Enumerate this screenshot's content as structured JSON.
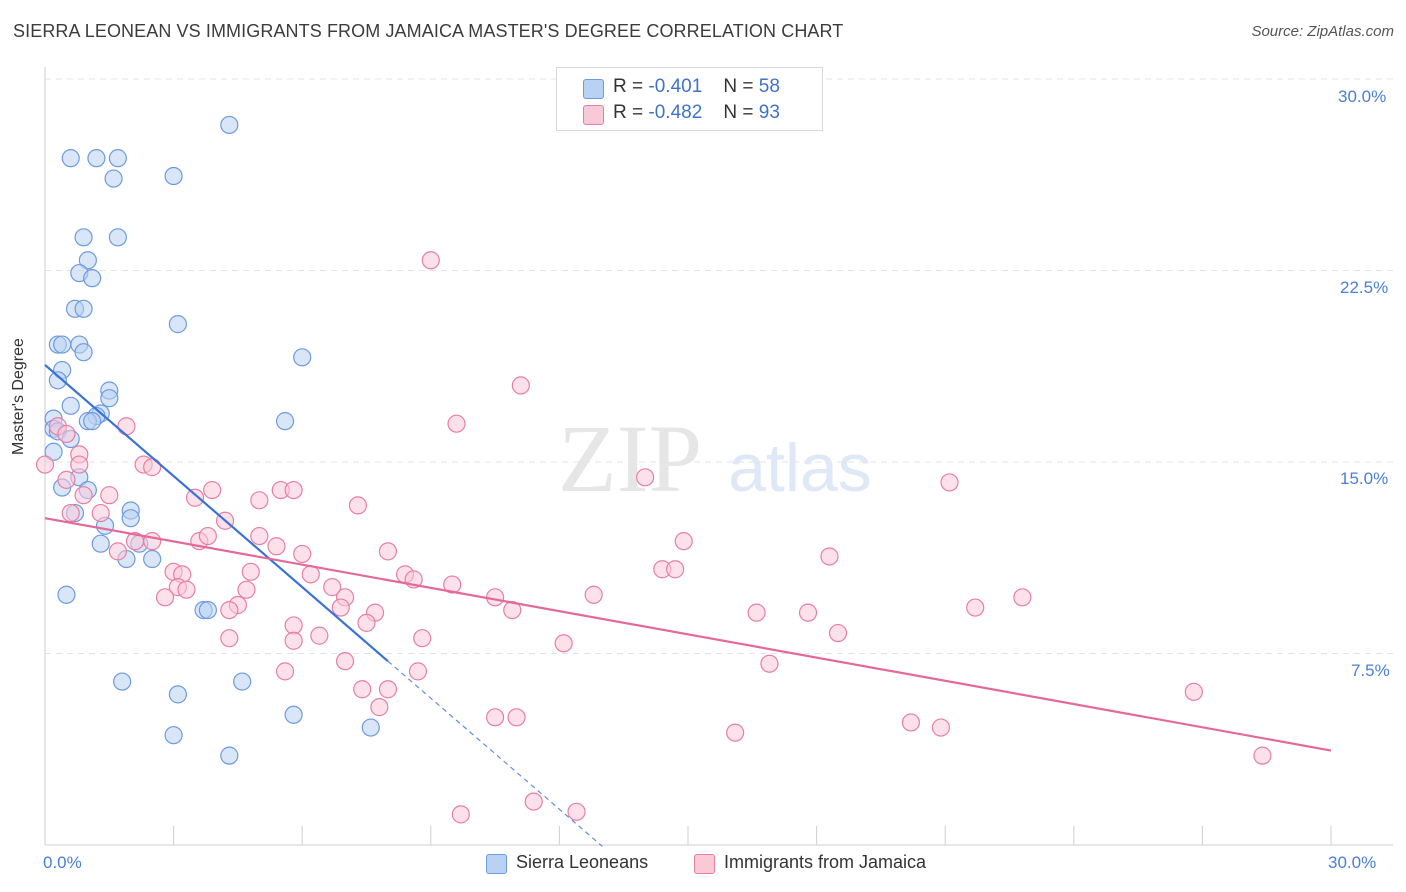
{
  "title": "SIERRA LEONEAN VS IMMIGRANTS FROM JAMAICA MASTER'S DEGREE CORRELATION CHART",
  "source": "Source: ZipAtlas.com",
  "watermark": {
    "zip": "ZIP",
    "atlas": "atlas"
  },
  "legend": {
    "r_label": "R =",
    "n_label": "N =",
    "series": [
      {
        "name": "Sierra Leoneans",
        "r": "-0.401",
        "n": "58",
        "fill": "#b9d2f3",
        "stroke": "#6d9be0"
      },
      {
        "name": "Immigrants from Jamaica",
        "r": "-0.482",
        "n": "93",
        "fill": "#f9c9d8",
        "stroke": "#e87fa2"
      }
    ]
  },
  "colors": {
    "blue_line": "#3a72d4",
    "pink_line": "#e4699a",
    "tick_text": "#4a7fd4",
    "grid": "#e3e3e3"
  },
  "chart_data": {
    "type": "scatter",
    "title": "SIERRA LEONEAN VS IMMIGRANTS FROM JAMAICA MASTER'S DEGREE CORRELATION CHART",
    "xlabel": "",
    "ylabel": "Master's Degree",
    "xlim": [
      0,
      30
    ],
    "ylim": [
      0,
      30
    ],
    "x_tick_labels": [
      "0.0%",
      "30.0%"
    ],
    "y_ticks": [
      7.5,
      15.0,
      22.5,
      30.0
    ],
    "y_tick_labels": [
      "7.5%",
      "15.0%",
      "22.5%",
      "30.0%"
    ],
    "grid": true,
    "legend_position": "top-center",
    "series": [
      {
        "name": "Sierra Leoneans",
        "points": [
          [
            4.3,
            28.2
          ],
          [
            0.6,
            26.9
          ],
          [
            1.2,
            26.9
          ],
          [
            1.7,
            26.9
          ],
          [
            1.6,
            26.1
          ],
          [
            3.0,
            26.2
          ],
          [
            0.9,
            23.8
          ],
          [
            1.7,
            23.8
          ],
          [
            1.0,
            22.9
          ],
          [
            0.8,
            22.4
          ],
          [
            1.1,
            22.2
          ],
          [
            0.7,
            21.0
          ],
          [
            0.9,
            21.0
          ],
          [
            3.1,
            20.4
          ],
          [
            0.3,
            19.6
          ],
          [
            0.4,
            19.6
          ],
          [
            0.8,
            19.6
          ],
          [
            0.9,
            19.3
          ],
          [
            6.0,
            19.1
          ],
          [
            0.4,
            18.6
          ],
          [
            0.3,
            18.2
          ],
          [
            1.5,
            17.8
          ],
          [
            1.5,
            17.5
          ],
          [
            0.6,
            17.2
          ],
          [
            1.3,
            16.9
          ],
          [
            1.2,
            16.8
          ],
          [
            1.0,
            16.6
          ],
          [
            1.1,
            16.6
          ],
          [
            5.6,
            16.6
          ],
          [
            0.2,
            16.7
          ],
          [
            0.2,
            16.3
          ],
          [
            0.3,
            16.2
          ],
          [
            0.6,
            15.9
          ],
          [
            0.2,
            15.4
          ],
          [
            0.8,
            14.4
          ],
          [
            0.4,
            14.0
          ],
          [
            1.0,
            13.9
          ],
          [
            0.7,
            13.0
          ],
          [
            2.0,
            13.1
          ],
          [
            2.0,
            12.8
          ],
          [
            1.4,
            12.5
          ],
          [
            1.3,
            11.8
          ],
          [
            2.2,
            11.8
          ],
          [
            1.9,
            11.2
          ],
          [
            2.5,
            11.2
          ],
          [
            0.5,
            9.8
          ],
          [
            3.7,
            9.2
          ],
          [
            3.8,
            9.2
          ],
          [
            1.8,
            6.4
          ],
          [
            3.1,
            5.9
          ],
          [
            4.6,
            6.4
          ],
          [
            5.8,
            5.1
          ],
          [
            3.0,
            4.3
          ],
          [
            7.6,
            4.6
          ],
          [
            4.3,
            3.5
          ]
        ]
      },
      {
        "name": "Immigrants from Jamaica",
        "points": [
          [
            9.0,
            22.9
          ],
          [
            11.1,
            18.0
          ],
          [
            9.6,
            16.5
          ],
          [
            0.0,
            14.9
          ],
          [
            0.3,
            16.4
          ],
          [
            0.5,
            16.1
          ],
          [
            0.8,
            15.3
          ],
          [
            0.8,
            14.9
          ],
          [
            0.5,
            14.3
          ],
          [
            0.9,
            13.7
          ],
          [
            0.6,
            13.0
          ],
          [
            1.3,
            13.0
          ],
          [
            1.5,
            13.7
          ],
          [
            1.9,
            16.4
          ],
          [
            2.3,
            14.9
          ],
          [
            2.5,
            14.8
          ],
          [
            3.5,
            13.6
          ],
          [
            3.9,
            13.9
          ],
          [
            4.2,
            12.7
          ],
          [
            5.0,
            13.5
          ],
          [
            5.5,
            13.9
          ],
          [
            5.8,
            13.9
          ],
          [
            7.3,
            13.3
          ],
          [
            3.6,
            11.9
          ],
          [
            3.8,
            12.1
          ],
          [
            5.0,
            12.1
          ],
          [
            5.4,
            11.7
          ],
          [
            6.0,
            11.4
          ],
          [
            8.0,
            11.5
          ],
          [
            2.1,
            11.9
          ],
          [
            2.5,
            11.9
          ],
          [
            1.7,
            11.5
          ],
          [
            3.0,
            10.7
          ],
          [
            3.2,
            10.6
          ],
          [
            3.1,
            10.1
          ],
          [
            2.8,
            9.7
          ],
          [
            3.3,
            10.0
          ],
          [
            4.8,
            10.7
          ],
          [
            4.7,
            10.0
          ],
          [
            4.5,
            9.4
          ],
          [
            4.3,
            9.2
          ],
          [
            6.2,
            10.6
          ],
          [
            6.7,
            10.1
          ],
          [
            7.0,
            9.7
          ],
          [
            6.9,
            9.3
          ],
          [
            7.7,
            9.1
          ],
          [
            8.4,
            10.6
          ],
          [
            8.6,
            10.4
          ],
          [
            9.5,
            10.2
          ],
          [
            10.5,
            9.7
          ],
          [
            10.9,
            9.2
          ],
          [
            12.8,
            9.8
          ],
          [
            14.4,
            10.8
          ],
          [
            14.7,
            10.8
          ],
          [
            14.0,
            14.4
          ],
          [
            14.9,
            11.9
          ],
          [
            16.6,
            9.1
          ],
          [
            17.8,
            9.1
          ],
          [
            16.9,
            7.1
          ],
          [
            18.5,
            8.3
          ],
          [
            18.3,
            11.3
          ],
          [
            21.7,
            9.3
          ],
          [
            22.8,
            9.7
          ],
          [
            21.1,
            14.2
          ],
          [
            4.3,
            8.1
          ],
          [
            5.8,
            8.6
          ],
          [
            6.4,
            8.2
          ],
          [
            5.8,
            8.0
          ],
          [
            7.5,
            8.7
          ],
          [
            8.8,
            8.1
          ],
          [
            5.6,
            6.8
          ],
          [
            7.0,
            7.2
          ],
          [
            7.4,
            6.1
          ],
          [
            8.0,
            6.1
          ],
          [
            7.8,
            5.4
          ],
          [
            8.7,
            6.8
          ],
          [
            10.5,
            5.0
          ],
          [
            11.0,
            5.0
          ],
          [
            12.1,
            7.9
          ],
          [
            16.1,
            4.4
          ],
          [
            20.2,
            4.8
          ],
          [
            20.9,
            4.6
          ],
          [
            26.8,
            6.0
          ],
          [
            28.4,
            3.5
          ],
          [
            9.7,
            1.2
          ],
          [
            11.4,
            1.7
          ],
          [
            12.4,
            1.3
          ]
        ]
      }
    ],
    "trend_lines": [
      {
        "series": "Sierra Leoneans",
        "x0": 0.0,
        "y0": 18.8,
        "x1": 8.0,
        "y1": 7.2,
        "dashed_extension_to_x": 13.0
      },
      {
        "series": "Immigrants from Jamaica",
        "x0": 0.0,
        "y0": 12.8,
        "x1": 30.0,
        "y1": 3.7
      }
    ]
  }
}
